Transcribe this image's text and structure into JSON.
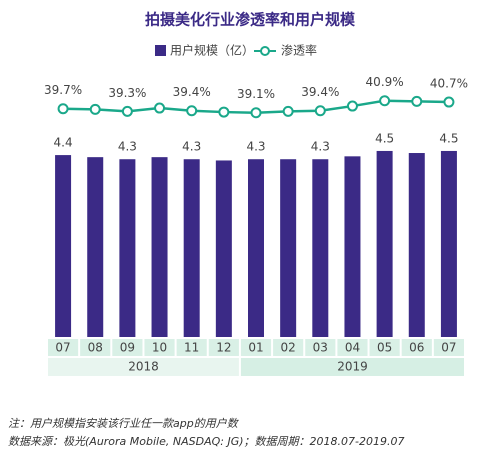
{
  "chart_data": {
    "type": "bar-line",
    "title": "拍摄美化行业渗透率和用户规模",
    "categories": [
      "07",
      "08",
      "09",
      "10",
      "11",
      "12",
      "01",
      "02",
      "03",
      "04",
      "05",
      "06",
      "07"
    ],
    "x_groups": [
      "2018",
      "2019"
    ],
    "series": [
      {
        "name": "用户规模（亿）",
        "type": "bar",
        "color": "#3b2a86",
        "values": [
          4.4,
          4.35,
          4.3,
          4.35,
          4.3,
          4.27,
          4.3,
          4.3,
          4.3,
          4.37,
          4.5,
          4.45,
          4.5
        ],
        "value_labels": [
          "4.4",
          null,
          "4.3",
          null,
          "4.3",
          null,
          "4.3",
          null,
          "4.3",
          null,
          "4.5",
          null,
          "4.5"
        ]
      },
      {
        "name": "渗透率",
        "type": "line",
        "axis": "y2",
        "color": "#1aa88a",
        "values": [
          39.7,
          39.6,
          39.3,
          39.8,
          39.4,
          39.2,
          39.1,
          39.3,
          39.4,
          40.1,
          40.9,
          40.8,
          40.7
        ],
        "value_labels": [
          "39.7%",
          null,
          "39.3%",
          null,
          "39.4%",
          null,
          "39.1%",
          null,
          "39.4%",
          null,
          "40.9%",
          null,
          "40.7%"
        ]
      }
    ],
    "ylim": [
      0,
      6.7
    ],
    "y2lim": [
      5.5,
      47
    ],
    "notes": [
      "注：用户规模指安装该行业任一款app的用户数",
      "数据来源：极光(Aurora Mobile, NASDAQ: JG)；数据周期：2018.07-2019.07"
    ]
  }
}
